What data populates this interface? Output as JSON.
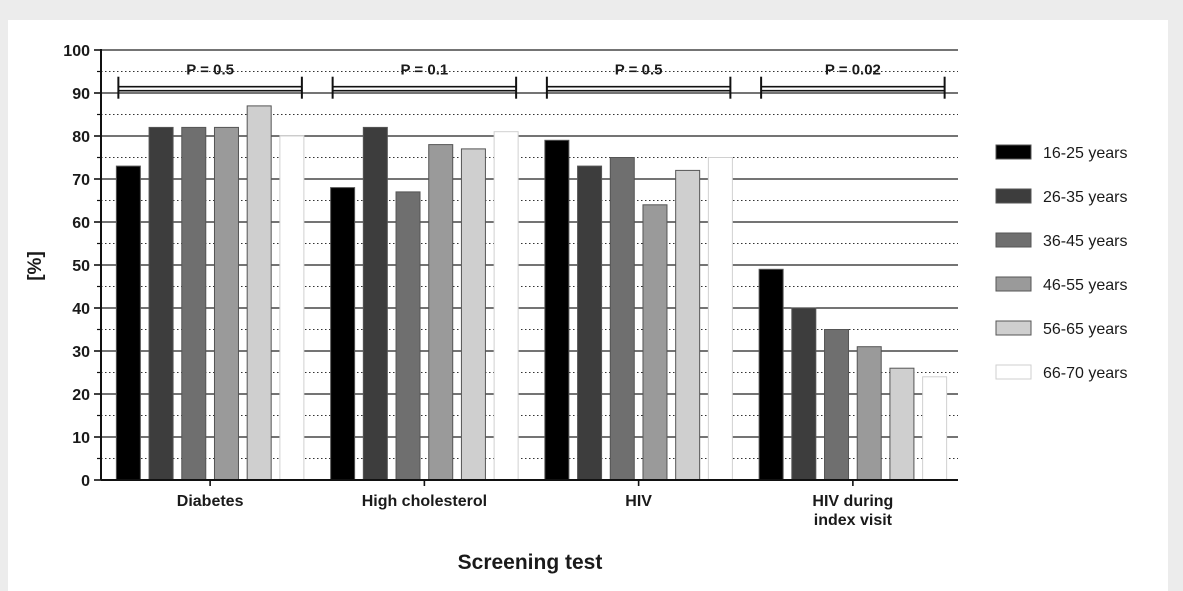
{
  "chart_data": {
    "type": "bar",
    "xlabel": "Screening test",
    "ylabel": "[%]",
    "ylim": [
      0,
      100
    ],
    "yticks": [
      0,
      10,
      20,
      30,
      40,
      50,
      60,
      70,
      80,
      90,
      100
    ],
    "categories": [
      {
        "lines": [
          "Diabetes"
        ]
      },
      {
        "lines": [
          "High cholesterol"
        ]
      },
      {
        "lines": [
          "HIV"
        ]
      },
      {
        "lines": [
          "HIV during",
          "index visit"
        ]
      }
    ],
    "series": [
      {
        "name": "16-25 years",
        "color": "#000000",
        "values": [
          73,
          68,
          79,
          49
        ]
      },
      {
        "name": "26-35 years",
        "color": "#3d3d3d",
        "values": [
          82,
          82,
          73,
          40
        ]
      },
      {
        "name": "36-45 years",
        "color": "#6f6f6f",
        "values": [
          82,
          67,
          75,
          35
        ]
      },
      {
        "name": "46-55 years",
        "color": "#9a9a9a",
        "values": [
          82,
          78,
          64,
          31
        ]
      },
      {
        "name": "56-65 years",
        "color": "#cfcfcf",
        "values": [
          87,
          77,
          72,
          26
        ]
      },
      {
        "name": "66-70 years",
        "color": "#ffffff",
        "values": [
          80,
          81,
          75,
          24
        ]
      }
    ],
    "pvalues": [
      "P = 0.5",
      "P = 0.1",
      "P = 0.5",
      "P = 0.02"
    ],
    "pvalue_bracket_level": 91,
    "grid": "solid major gridlines at every 10, dotted minor gridlines at every 5",
    "legend_position": "right"
  }
}
